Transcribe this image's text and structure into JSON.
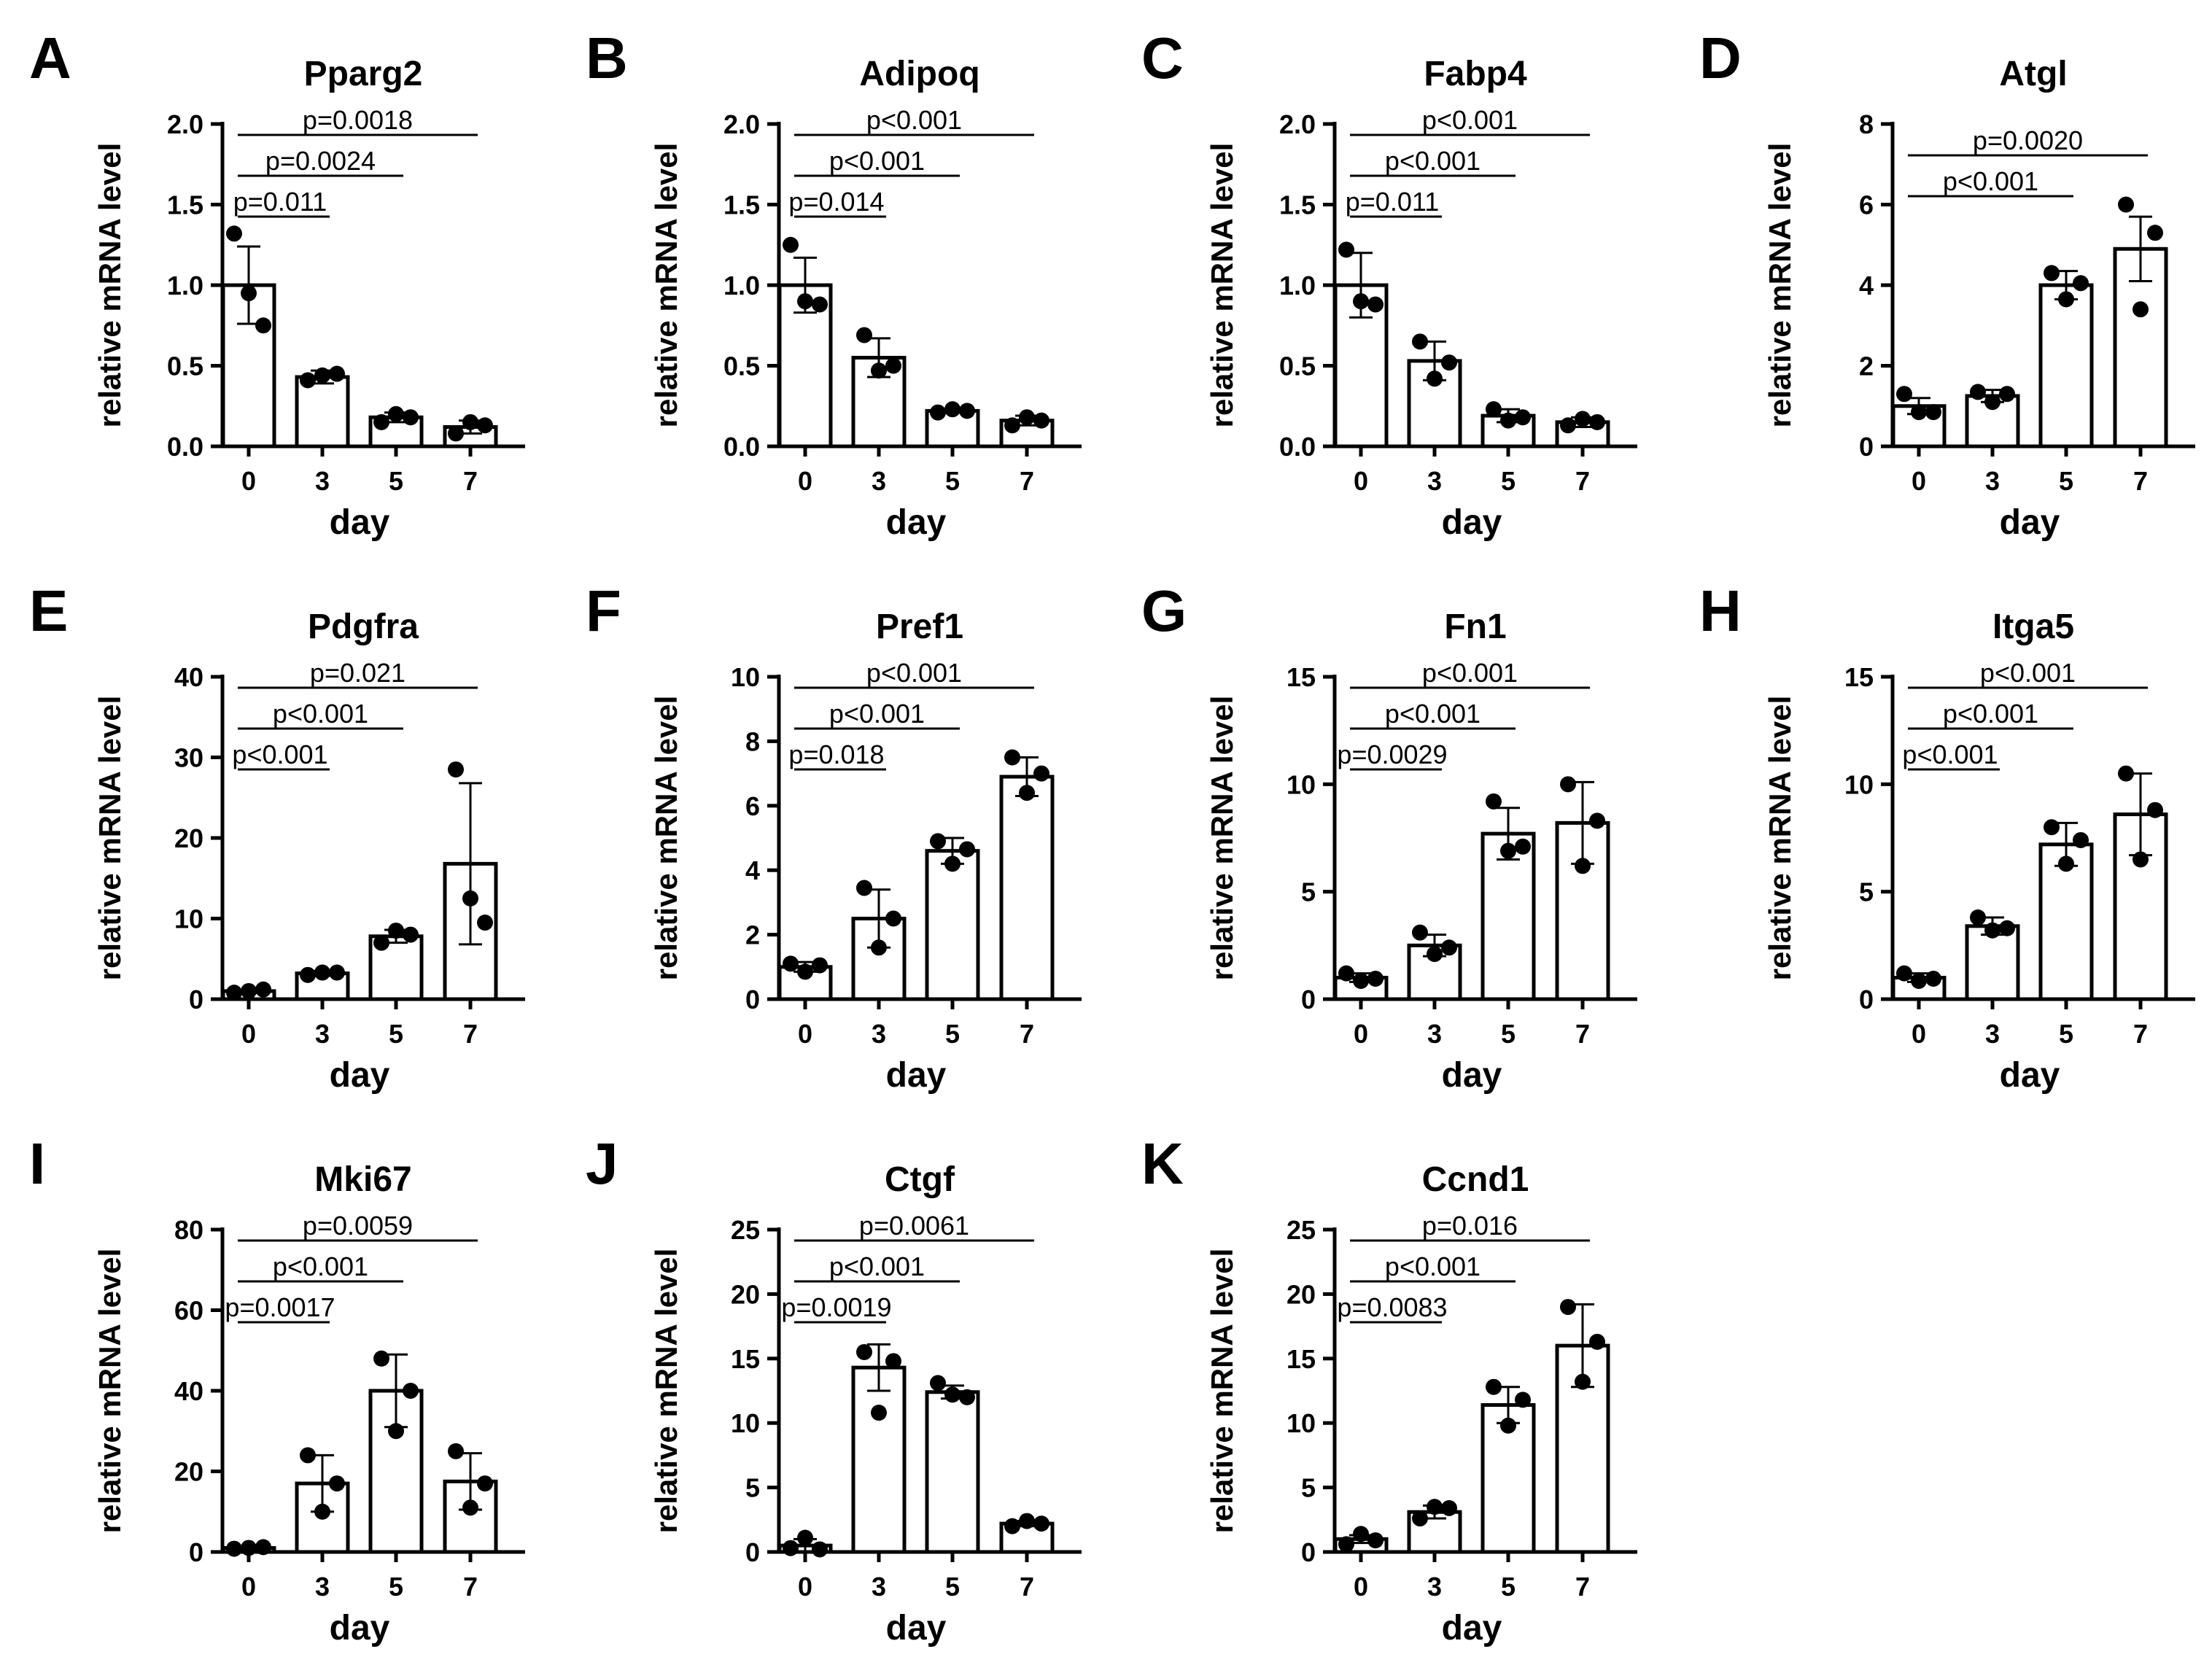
{
  "x_axis_label": "day",
  "y_axis_label": "relative mRNA level",
  "chart_data": [
    {
      "letter": "A",
      "type": "bar",
      "title": "Pparg2",
      "xlabel": "day",
      "ylabel": "relative mRNA level",
      "categories": [
        "0",
        "3",
        "5",
        "7"
      ],
      "ylim": [
        0,
        2.0
      ],
      "yticks": [
        "0.0",
        "0.5",
        "1.0",
        "1.5",
        "2.0"
      ],
      "values": [
        1.0,
        0.43,
        0.18,
        0.12
      ],
      "errors": [
        0.24,
        0.04,
        0.03,
        0.04
      ],
      "points": [
        [
          1.32,
          0.95,
          0.75
        ],
        [
          0.41,
          0.44,
          0.45
        ],
        [
          0.15,
          0.2,
          0.18
        ],
        [
          0.08,
          0.15,
          0.13
        ]
      ],
      "comparisons": [
        {
          "from": 0,
          "to": 1,
          "label": "p=0.011"
        },
        {
          "from": 0,
          "to": 2,
          "label": "p=0.0024"
        },
        {
          "from": 0,
          "to": 3,
          "label": "p=0.0018"
        }
      ]
    },
    {
      "letter": "B",
      "type": "bar",
      "title": "Adipoq",
      "xlabel": "day",
      "ylabel": "relative mRNA level",
      "categories": [
        "0",
        "3",
        "5",
        "7"
      ],
      "ylim": [
        0,
        2.0
      ],
      "yticks": [
        "0.0",
        "0.5",
        "1.0",
        "1.5",
        "2.0"
      ],
      "values": [
        1.0,
        0.55,
        0.22,
        0.16
      ],
      "errors": [
        0.17,
        0.12,
        0.01,
        0.03
      ],
      "points": [
        [
          1.25,
          0.9,
          0.88
        ],
        [
          0.69,
          0.47,
          0.5
        ],
        [
          0.21,
          0.23,
          0.22
        ],
        [
          0.13,
          0.18,
          0.16
        ]
      ],
      "comparisons": [
        {
          "from": 0,
          "to": 1,
          "label": "p=0.014"
        },
        {
          "from": 0,
          "to": 2,
          "label": "p<0.001"
        },
        {
          "from": 0,
          "to": 3,
          "label": "p<0.001"
        }
      ]
    },
    {
      "letter": "C",
      "type": "bar",
      "title": "Fabp4",
      "xlabel": "day",
      "ylabel": "relative mRNA level",
      "categories": [
        "0",
        "3",
        "5",
        "7"
      ],
      "ylim": [
        0,
        2.0
      ],
      "yticks": [
        "0.0",
        "0.5",
        "1.0",
        "1.5",
        "2.0"
      ],
      "values": [
        1.0,
        0.53,
        0.19,
        0.15
      ],
      "errors": [
        0.2,
        0.12,
        0.04,
        0.03
      ],
      "points": [
        [
          1.22,
          0.9,
          0.88
        ],
        [
          0.65,
          0.42,
          0.52
        ],
        [
          0.23,
          0.16,
          0.18
        ],
        [
          0.13,
          0.17,
          0.15
        ]
      ],
      "comparisons": [
        {
          "from": 0,
          "to": 1,
          "label": "p=0.011"
        },
        {
          "from": 0,
          "to": 2,
          "label": "p<0.001"
        },
        {
          "from": 0,
          "to": 3,
          "label": "p<0.001"
        }
      ]
    },
    {
      "letter": "D",
      "type": "bar",
      "title": "Atgl",
      "xlabel": "day",
      "ylabel": "relative mRNA level",
      "categories": [
        "0",
        "3",
        "5",
        "7"
      ],
      "ylim": [
        0,
        8
      ],
      "yticks": [
        "0",
        "2",
        "4",
        "6",
        "8"
      ],
      "values": [
        1.0,
        1.25,
        4.0,
        4.9
      ],
      "errors": [
        0.2,
        0.15,
        0.35,
        0.8
      ],
      "points": [
        [
          1.3,
          0.85,
          0.85
        ],
        [
          1.35,
          1.1,
          1.3
        ],
        [
          4.3,
          3.65,
          4.05
        ],
        [
          6.0,
          3.4,
          5.3
        ]
      ],
      "comparisons": [
        {
          "from": 0,
          "to": 2,
          "label": "p<0.001"
        },
        {
          "from": 0,
          "to": 3,
          "label": "p=0.0020"
        }
      ]
    },
    {
      "letter": "E",
      "type": "bar",
      "title": "Pdgfra",
      "xlabel": "day",
      "ylabel": "relative mRNA level",
      "categories": [
        "0",
        "3",
        "5",
        "7"
      ],
      "ylim": [
        0,
        40
      ],
      "yticks": [
        "0",
        "10",
        "20",
        "30",
        "40"
      ],
      "values": [
        1.0,
        3.2,
        7.8,
        16.8
      ],
      "errors": [
        0.2,
        0.3,
        0.8,
        10.0
      ],
      "points": [
        [
          0.8,
          1.0,
          1.2
        ],
        [
          3.0,
          3.3,
          3.3
        ],
        [
          7.0,
          8.5,
          8.0
        ],
        [
          28.5,
          12.5,
          9.5
        ]
      ],
      "comparisons": [
        {
          "from": 0,
          "to": 1,
          "label": "p<0.001"
        },
        {
          "from": 0,
          "to": 2,
          "label": "p<0.001"
        },
        {
          "from": 0,
          "to": 3,
          "label": "p=0.021"
        }
      ]
    },
    {
      "letter": "F",
      "type": "bar",
      "title": "Pref1",
      "xlabel": "day",
      "ylabel": "relative mRNA level",
      "categories": [
        "0",
        "3",
        "5",
        "7"
      ],
      "ylim": [
        0,
        10
      ],
      "yticks": [
        "0",
        "2",
        "4",
        "6",
        "8",
        "10"
      ],
      "values": [
        1.0,
        2.5,
        4.6,
        6.9
      ],
      "errors": [
        0.15,
        0.9,
        0.4,
        0.6
      ],
      "points": [
        [
          1.1,
          0.85,
          1.05
        ],
        [
          3.45,
          1.6,
          2.5
        ],
        [
          4.9,
          4.2,
          4.65
        ],
        [
          7.5,
          6.4,
          7.0
        ]
      ],
      "comparisons": [
        {
          "from": 0,
          "to": 1,
          "label": "p=0.018"
        },
        {
          "from": 0,
          "to": 2,
          "label": "p<0.001"
        },
        {
          "from": 0,
          "to": 3,
          "label": "p<0.001"
        }
      ]
    },
    {
      "letter": "G",
      "type": "bar",
      "title": "Fn1",
      "xlabel": "day",
      "ylabel": "relative mRNA level",
      "categories": [
        "0",
        "3",
        "5",
        "7"
      ],
      "ylim": [
        0,
        15
      ],
      "yticks": [
        "0",
        "5",
        "10",
        "15"
      ],
      "values": [
        1.0,
        2.5,
        7.7,
        8.2
      ],
      "errors": [
        0.2,
        0.5,
        1.2,
        1.9
      ],
      "points": [
        [
          1.2,
          0.85,
          0.95
        ],
        [
          3.1,
          2.1,
          2.4
        ],
        [
          9.2,
          6.9,
          7.1
        ],
        [
          10.0,
          6.2,
          8.3
        ]
      ],
      "comparisons": [
        {
          "from": 0,
          "to": 1,
          "label": "p=0.0029"
        },
        {
          "from": 0,
          "to": 2,
          "label": "p<0.001"
        },
        {
          "from": 0,
          "to": 3,
          "label": "p<0.001"
        }
      ]
    },
    {
      "letter": "H",
      "type": "bar",
      "title": "Itga5",
      "xlabel": "day",
      "ylabel": "relative mRNA level",
      "categories": [
        "0",
        "3",
        "5",
        "7"
      ],
      "ylim": [
        0,
        15
      ],
      "yticks": [
        "0",
        "5",
        "10",
        "15"
      ],
      "values": [
        1.0,
        3.4,
        7.2,
        8.6
      ],
      "errors": [
        0.2,
        0.4,
        1.0,
        1.9
      ],
      "points": [
        [
          1.2,
          0.85,
          0.95
        ],
        [
          3.8,
          3.2,
          3.3
        ],
        [
          8.0,
          6.3,
          7.4
        ],
        [
          10.5,
          6.5,
          8.8
        ]
      ],
      "comparisons": [
        {
          "from": 0,
          "to": 1,
          "label": "p<0.001"
        },
        {
          "from": 0,
          "to": 2,
          "label": "p<0.001"
        },
        {
          "from": 0,
          "to": 3,
          "label": "p<0.001"
        }
      ]
    },
    {
      "letter": "I",
      "type": "bar",
      "title": "Mki67",
      "xlabel": "day",
      "ylabel": "relative mRNA level",
      "categories": [
        "0",
        "3",
        "5",
        "7"
      ],
      "ylim": [
        0,
        80
      ],
      "yticks": [
        "0",
        "20",
        "40",
        "60",
        "80"
      ],
      "values": [
        1.0,
        17.0,
        40.0,
        17.5
      ],
      "errors": [
        0.3,
        7.0,
        9.0,
        7.0
      ],
      "points": [
        [
          0.8,
          1.0,
          1.2
        ],
        [
          24.0,
          10.0,
          17.0
        ],
        [
          48.0,
          30.0,
          40.0
        ],
        [
          25.0,
          11.0,
          17.0
        ]
      ],
      "comparisons": [
        {
          "from": 0,
          "to": 1,
          "label": "p=0.0017"
        },
        {
          "from": 0,
          "to": 2,
          "label": "p<0.001"
        },
        {
          "from": 0,
          "to": 3,
          "label": "p=0.0059"
        }
      ]
    },
    {
      "letter": "J",
      "type": "bar",
      "title": "Ctgf",
      "xlabel": "day",
      "ylabel": "relative mRNA level",
      "categories": [
        "0",
        "3",
        "5",
        "7"
      ],
      "ylim": [
        0,
        25
      ],
      "yticks": [
        "0",
        "5",
        "10",
        "15",
        "20",
        "25"
      ],
      "values": [
        0.5,
        14.3,
        12.4,
        2.2
      ],
      "errors": [
        0.5,
        1.8,
        0.5,
        0.2
      ],
      "points": [
        [
          0.3,
          1.1,
          0.2
        ],
        [
          15.5,
          10.8,
          14.8
        ],
        [
          13.1,
          12.2,
          12.0
        ],
        [
          2.0,
          2.4,
          2.2
        ]
      ],
      "comparisons": [
        {
          "from": 0,
          "to": 1,
          "label": "p=0.0019"
        },
        {
          "from": 0,
          "to": 2,
          "label": "p<0.001"
        },
        {
          "from": 0,
          "to": 3,
          "label": "p=0.0061"
        }
      ]
    },
    {
      "letter": "K",
      "type": "bar",
      "title": "Ccnd1",
      "xlabel": "day",
      "ylabel": "relative mRNA level",
      "categories": [
        "0",
        "3",
        "5",
        "7"
      ],
      "ylim": [
        0,
        25
      ],
      "yticks": [
        "0",
        "5",
        "10",
        "15",
        "20",
        "25"
      ],
      "values": [
        1.0,
        3.1,
        11.4,
        16.0
      ],
      "errors": [
        0.3,
        0.5,
        1.4,
        3.2
      ],
      "points": [
        [
          0.6,
          1.4,
          0.9
        ],
        [
          2.6,
          3.5,
          3.4
        ],
        [
          12.8,
          9.8,
          11.8
        ],
        [
          19.0,
          13.2,
          16.3
        ]
      ],
      "comparisons": [
        {
          "from": 0,
          "to": 1,
          "label": "p=0.0083"
        },
        {
          "from": 0,
          "to": 2,
          "label": "p<0.001"
        },
        {
          "from": 0,
          "to": 3,
          "label": "p=0.016"
        }
      ]
    }
  ]
}
